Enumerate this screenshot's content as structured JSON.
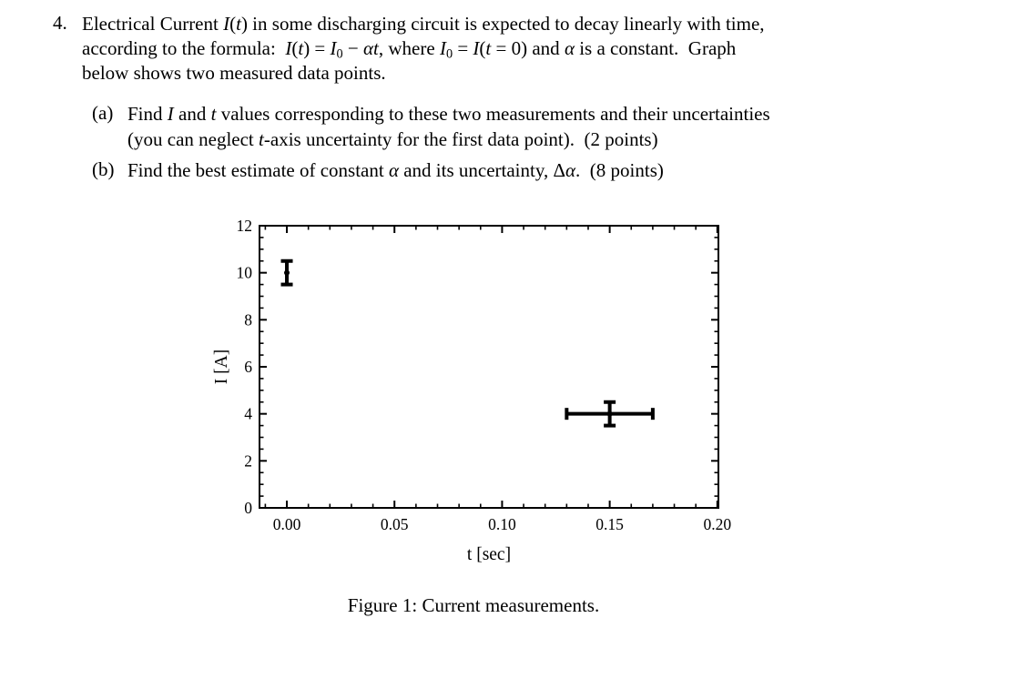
{
  "problem": {
    "number": "4.",
    "lines": [
      [
        {
          "t": "Electrical Current "
        },
        {
          "t": "I",
          "i": true
        },
        {
          "t": "("
        },
        {
          "t": "t",
          "i": true
        },
        {
          "t": ") in some discharging circuit is expected to decay linearly with time,"
        }
      ],
      [
        {
          "t": "according to the formula: "
        },
        {
          "t": "I",
          "i": true
        },
        {
          "t": "("
        },
        {
          "t": "t",
          "i": true
        },
        {
          "t": ") = "
        },
        {
          "t": "I",
          "i": true
        },
        {
          "t": "0",
          "sub": true
        },
        {
          "t": " − "
        },
        {
          "t": "αt",
          "i": true
        },
        {
          "t": ", where "
        },
        {
          "t": "I",
          "i": true
        },
        {
          "t": "0",
          "sub": true
        },
        {
          "t": " = "
        },
        {
          "t": "I",
          "i": true
        },
        {
          "t": "("
        },
        {
          "t": "t",
          "i": true
        },
        {
          "t": " = 0) and "
        },
        {
          "t": "α",
          "i": true
        },
        {
          "t": " is a constant. Graph"
        }
      ],
      [
        {
          "t": "below shows two measured data points."
        }
      ]
    ]
  },
  "items": [
    {
      "label": "(a)",
      "lines": [
        [
          {
            "t": "Find "
          },
          {
            "t": "I",
            "i": true
          },
          {
            "t": " and "
          },
          {
            "t": "t",
            "i": true
          },
          {
            "t": " values corresponding to these two measurements and their uncertainties"
          }
        ],
        [
          {
            "t": "(you can neglect "
          },
          {
            "t": "t",
            "i": true
          },
          {
            "t": "-axis uncertainty for the first data point). (2 points)"
          }
        ]
      ]
    },
    {
      "label": "(b)",
      "lines": [
        [
          {
            "t": "Find the best estimate of constant "
          },
          {
            "t": "α",
            "i": true
          },
          {
            "t": " and its uncertainty, Δ"
          },
          {
            "t": "α",
            "i": true
          },
          {
            "t": ". (8 points)"
          }
        ]
      ]
    }
  ],
  "figure": {
    "caption": "Figure 1: Current measurements."
  },
  "chart_data": {
    "type": "scatter",
    "title": "",
    "xlabel": "t [sec]",
    "ylabel": "I [A]",
    "xlim": [
      -0.0127,
      0.2005
    ],
    "ylim": [
      0,
      12
    ],
    "x_major_ticks": [
      0,
      0.05,
      0.1,
      0.15,
      0.2
    ],
    "x_tick_labels": [
      "0.00",
      "0.05",
      "0.10",
      "0.15",
      "0.20"
    ],
    "x_minor_step": 0.01,
    "y_major_ticks": [
      0,
      2,
      4,
      6,
      8,
      10,
      12
    ],
    "y_tick_labels": [
      "0",
      "2",
      "4",
      "6",
      "8",
      "10",
      "12"
    ],
    "y_minor_step": 0.5,
    "frame": true,
    "grid": false,
    "legend": false,
    "color": "#000000",
    "points": [
      {
        "x": 0.0,
        "y": 10.0,
        "xerr": 0.0,
        "yerr": 0.5
      },
      {
        "x": 0.15,
        "y": 4.0,
        "xerr": 0.02,
        "yerr": 0.5
      }
    ]
  }
}
